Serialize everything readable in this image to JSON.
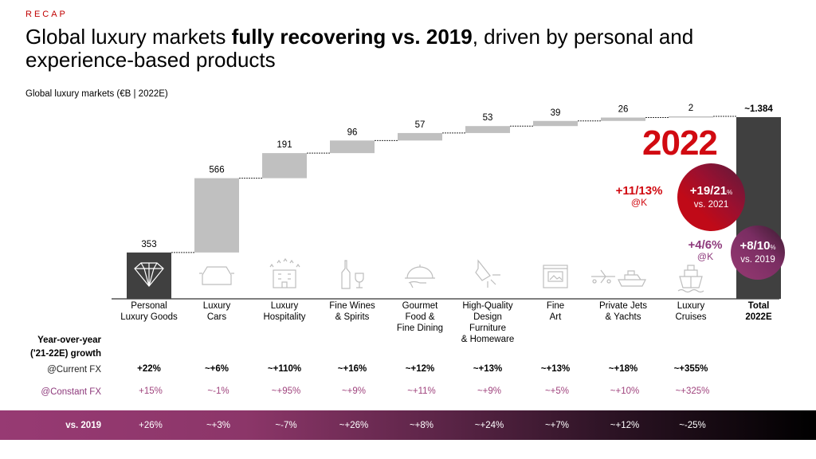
{
  "header": {
    "kicker": "RECAP",
    "title_part1": "Global luxury markets ",
    "title_bold": "fully recovering vs. 2019",
    "title_part2": ", driven by personal and experience-based products",
    "subtitle": "Global luxury markets (€B | 2022E)"
  },
  "colors": {
    "accent_red": "#d10a11",
    "accent_purple": "#8e3a7c",
    "bar_dark": "#404040",
    "bar_light": "#c0c0c0"
  },
  "chart_data": {
    "type": "waterfall",
    "title": "Global luxury markets (€B | 2022E)",
    "categories": [
      "Personal Luxury Goods",
      "Luxury Cars",
      "Luxury Hospitality",
      "Fine Wines & Spirits",
      "Gourmet Food & Fine Dining",
      "High-Quality Design Furniture & Homeware",
      "Fine Art",
      "Private Jets & Yachts",
      "Luxury Cruises",
      "Total 2022E"
    ],
    "category_lines": [
      [
        "Personal",
        "Luxury Goods"
      ],
      [
        "Luxury",
        "Cars"
      ],
      [
        "Luxury",
        "Hospitality"
      ],
      [
        "Fine Wines",
        "& Spirits"
      ],
      [
        "Gourmet",
        "Food &",
        "Fine Dining"
      ],
      [
        "High-Quality",
        "Design",
        "Furniture",
        "& Homeware"
      ],
      [
        "Fine",
        "Art"
      ],
      [
        "Private Jets",
        "& Yachts"
      ],
      [
        "Luxury",
        "Cruises"
      ],
      [
        "Total",
        "2022E"
      ]
    ],
    "values": [
      353,
      566,
      191,
      96,
      57,
      53,
      39,
      26,
      2,
      1384
    ],
    "value_labels": [
      "353",
      "566",
      "191",
      "96",
      "57",
      "53",
      "39",
      "26",
      "2",
      "~1.384"
    ],
    "bar_kinds": [
      "dark",
      "light",
      "light",
      "light",
      "light",
      "light",
      "light",
      "light",
      "light",
      "total"
    ],
    "icons": [
      "diamond-icon",
      "car-icon",
      "hotel-icon",
      "wine-icon",
      "cloche-icon",
      "lamp-icon",
      "painting-icon",
      "jet-yacht-icon",
      "cruise-ship-icon",
      ""
    ],
    "ylim": [
      0,
      1384
    ],
    "xlabel": "",
    "ylabel": "",
    "grid": false
  },
  "highlight": {
    "year": "2022",
    "growth_constant_2021": "+11/13%",
    "growth_constant_2021_note": "@K",
    "circle_2021_value": "+19/21",
    "circle_2021_pct": "%",
    "circle_2021_label": "vs. 2021",
    "growth_constant_2019": "+4/6%",
    "growth_constant_2019_note": "@K",
    "circle_2019_value": "+8/10",
    "circle_2019_pct": "%",
    "circle_2019_label": "vs. 2019"
  },
  "growth_table": {
    "heading_line1": "Year-over-year",
    "heading_line2": "('21-22E) growth",
    "current_fx_label": "@Current FX",
    "constant_fx_label": "@Constant FX",
    "vs2019_label": "vs. 2019",
    "current_fx": [
      "+22%",
      "~+6%",
      "~+110%",
      "~+16%",
      "~+12%",
      "~+13%",
      "~+13%",
      "~+18%",
      "~+355%"
    ],
    "constant_fx": [
      "+15%",
      "~-1%",
      "~+95%",
      "~+9%",
      "~+11%",
      "~+9%",
      "~+5%",
      "~+10%",
      "~+325%"
    ],
    "vs_2019": [
      "+26%",
      "~+3%",
      "~-7%",
      "~+26%",
      "~+8%",
      "~+24%",
      "~+7%",
      "~+12%",
      "~-25%"
    ]
  }
}
